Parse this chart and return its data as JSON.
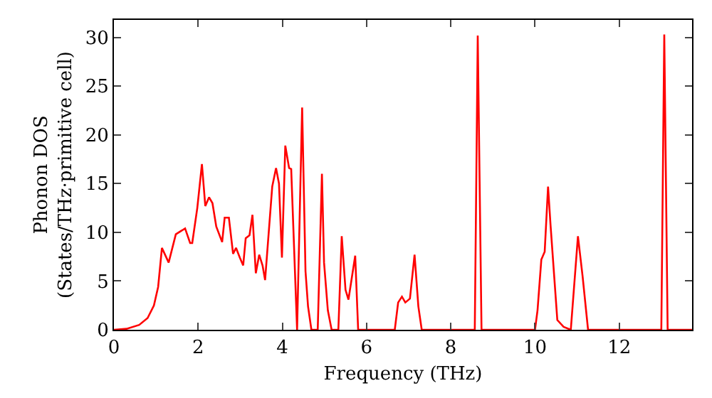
{
  "chart_data": {
    "type": "line",
    "xlabel": "Frequency (THz)",
    "ylabel": "Phonon DOS\n(States/THz·primitive cell)",
    "xlim": [
      0,
      13.73
    ],
    "ylim": [
      0,
      31.8
    ],
    "xticks": [
      0,
      2,
      4,
      6,
      8,
      10,
      12
    ],
    "yticks": [
      0,
      5,
      10,
      15,
      20,
      25,
      30
    ],
    "grid": false,
    "marker": "none",
    "line_style": "solid",
    "series": [
      {
        "color": "#ff0000",
        "x": [
          0,
          0.3,
          0.6,
          0.8,
          0.95,
          1.05,
          1.14,
          1.3,
          1.47,
          1.69,
          1.81,
          1.86,
          1.98,
          2.09,
          2.17,
          2.26,
          2.34,
          2.43,
          2.57,
          2.63,
          2.73,
          2.83,
          2.9,
          2.99,
          3.07,
          3.13,
          3.22,
          3.29,
          3.37,
          3.45,
          3.53,
          3.59,
          3.76,
          3.85,
          3.92,
          3.99,
          4.07,
          4.16,
          4.21,
          4.35,
          4.47,
          4.55,
          4.61,
          4.69,
          4.84,
          4.94,
          4.99,
          5.08,
          5.17,
          5.33,
          5.41,
          5.5,
          5.57,
          5.73,
          5.8,
          6.67,
          6.75,
          6.84,
          6.92,
          7.03,
          7.14,
          7.23,
          7.31,
          8.57,
          8.64,
          8.73,
          10.0,
          10.06,
          10.15,
          10.23,
          10.31,
          10.37,
          10.53,
          10.68,
          10.85,
          11.02,
          11.13,
          11.26,
          13.0,
          13.07,
          13.15,
          13.73
        ],
        "values": [
          0,
          0.1,
          0.5,
          1.2,
          2.5,
          4.4,
          8.4,
          6.9,
          9.8,
          10.4,
          8.9,
          8.9,
          12.5,
          17,
          12.7,
          13.6,
          13,
          10.6,
          9,
          11.5,
          11.5,
          7.8,
          8.4,
          7.4,
          6.6,
          9.4,
          9.7,
          11.8,
          5.8,
          7.7,
          6.6,
          5.1,
          14.7,
          16.6,
          15,
          7.4,
          18.9,
          16.6,
          16.5,
          0,
          22.8,
          6,
          2.4,
          0,
          0,
          16,
          6.9,
          2,
          0,
          0,
          9.6,
          4.1,
          3.1,
          7.6,
          0,
          0,
          2.8,
          3.4,
          2.8,
          3.2,
          7.7,
          2.4,
          0,
          0,
          30.2,
          0,
          0,
          2,
          7.2,
          8,
          14.7,
          10.7,
          1,
          0.3,
          0,
          9.6,
          5.5,
          0,
          0,
          30.3,
          0,
          0
        ]
      }
    ]
  }
}
